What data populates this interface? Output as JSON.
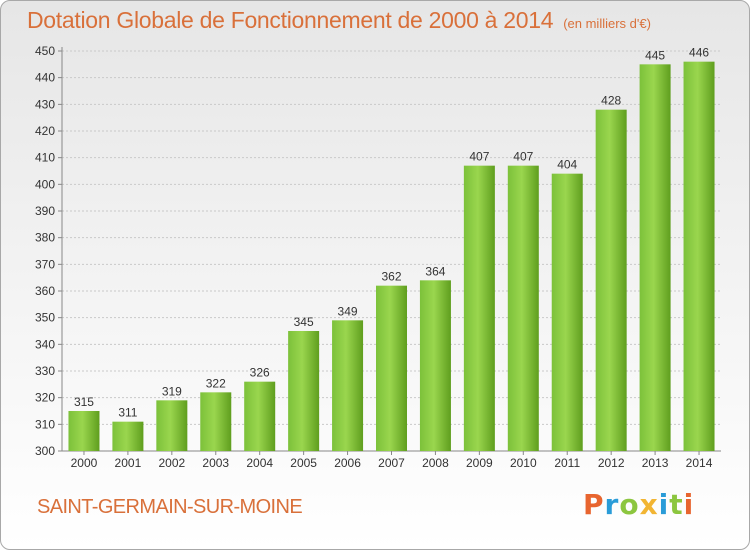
{
  "header": {
    "title": "Dotation Globale de Fonctionnement de 2000 à 2014",
    "subtitle": "(en milliers d'€)"
  },
  "footer": {
    "commune": "SAINT-GERMAIN-SUR-MOINE",
    "logo_letters": [
      "P",
      "r",
      "o",
      "x",
      "i",
      "t",
      "i"
    ],
    "logo_colors": [
      "#e8652f",
      "#2a9cd8",
      "#8cc63f",
      "#f2b533",
      "#2a9cd8",
      "#8cc63f",
      "#e8652f"
    ]
  },
  "chart_data": {
    "type": "bar",
    "title": "Dotation Globale de Fonctionnement de 2000 à 2014",
    "subtitle": "(en milliers d'€)",
    "categories": [
      "2000",
      "2001",
      "2002",
      "2003",
      "2004",
      "2005",
      "2006",
      "2007",
      "2008",
      "2009",
      "2010",
      "2011",
      "2012",
      "2013",
      "2014"
    ],
    "values": [
      315,
      311,
      319,
      322,
      326,
      345,
      349,
      362,
      364,
      407,
      407,
      404,
      428,
      445,
      446
    ],
    "ylim": [
      300,
      450
    ],
    "yticks": [
      300,
      310,
      320,
      330,
      340,
      350,
      360,
      370,
      380,
      390,
      400,
      410,
      420,
      430,
      440,
      450
    ],
    "grid": true,
    "bar_color": "#7cc13a",
    "bar_color_dark": "#5f9e1e"
  }
}
